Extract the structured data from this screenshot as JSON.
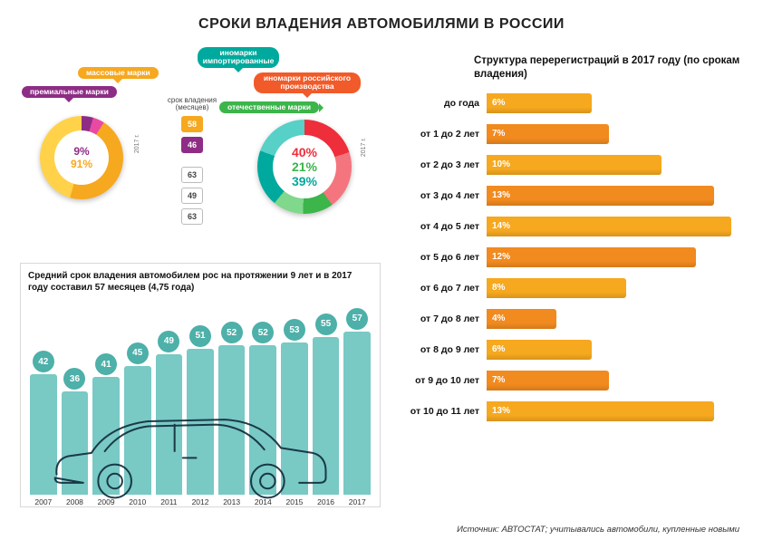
{
  "colors": {
    "purple": "#8e2d85",
    "yellow": "#f6a81f",
    "orange": "#f15a29",
    "red": "#ee2e3a",
    "teal": "#00a99d",
    "green": "#3cb54a",
    "teal_bar": "#79c9c5",
    "teal_circle": "#4db0a9",
    "orange_bar_a": "#f6a81f",
    "orange_bar_b": "#f18a1f",
    "gray_box": "#d8d8d8",
    "text": "#111111"
  },
  "title": "СРОКИ ВЛАДЕНИЯ АВТОМОБИЛЯМИ В РОССИИ",
  "top_left": {
    "pills": {
      "premium": {
        "label": "премиальные марки",
        "color_key": "purple"
      },
      "mass": {
        "label": "массовые марки",
        "color_key": "yellow"
      },
      "imported": {
        "label": "иномарки импортированные",
        "color_key": "teal"
      },
      "ru_made": {
        "label": "иномарки российского производства",
        "color_key": "orange"
      },
      "domestic": {
        "label": "отечественные марки",
        "color_key": "green"
      }
    },
    "donut_left": {
      "values": [
        {
          "pct": 9,
          "colors": [
            "#8e2d85",
            "#e84aa3"
          ]
        },
        {
          "pct": 91,
          "colors": [
            "#f6a81f",
            "#ffd24a"
          ]
        }
      ],
      "center_labels": [
        "9%",
        "91%"
      ],
      "center_colors": [
        "#8e2d85",
        "#f6a81f"
      ],
      "year_label": "2017 г.",
      "size": 92
    },
    "donut_right": {
      "values": [
        {
          "pct": 40,
          "colors": [
            "#ee2e3a",
            "#f4757e"
          ]
        },
        {
          "pct": 21,
          "colors": [
            "#3cb54a",
            "#7fd88b"
          ]
        },
        {
          "pct": 39,
          "colors": [
            "#00a99d",
            "#57d0c7"
          ]
        }
      ],
      "center_labels": [
        "40%",
        "21%",
        "39%"
      ],
      "center_colors": [
        "#ee2e3a",
        "#3cb54a",
        "#00a99d"
      ],
      "year_label": "2017 г.",
      "size": 104
    },
    "col_top": {
      "header": "срок владения (месяцев)",
      "boxes": [
        {
          "val": 58,
          "color_key": "yellow"
        },
        {
          "val": 46,
          "color_key": "purple"
        }
      ]
    },
    "col_bottom": {
      "boxes": [
        {
          "val": 63,
          "outline": true
        },
        {
          "val": 49,
          "outline": true
        },
        {
          "val": 63,
          "outline": true
        }
      ]
    }
  },
  "bottom_left": {
    "title": "Средний срок владения автомобилем рос на протяжении 9 лет и в 2017 году составил 57 месяцев (4,75 года)",
    "bars": {
      "color": "#79c9c5",
      "circle": "#4db0a9",
      "max_value": 60,
      "data": [
        {
          "year": "2007",
          "value": 42
        },
        {
          "year": "2008",
          "value": 36
        },
        {
          "year": "2009",
          "value": 41
        },
        {
          "year": "2010",
          "value": 45
        },
        {
          "year": "2011",
          "value": 49
        },
        {
          "year": "2012",
          "value": 51
        },
        {
          "year": "2013",
          "value": 52
        },
        {
          "year": "2014",
          "value": 52
        },
        {
          "year": "2015",
          "value": 53
        },
        {
          "year": "2016",
          "value": 55
        },
        {
          "year": "2017",
          "value": 57
        }
      ]
    }
  },
  "right": {
    "title": "Структура перерегистраций в 2017 году (по срокам владения)",
    "max_value": 14,
    "alternate_colors": [
      "#f6a81f",
      "#f18a1f"
    ],
    "rows": [
      {
        "label": "до года",
        "value": 6
      },
      {
        "label": "от 1 до 2 лет",
        "value": 7
      },
      {
        "label": "от 2 до 3 лет",
        "value": 10
      },
      {
        "label": "от 3 до 4 лет",
        "value": 13
      },
      {
        "label": "от 4 до 5 лет",
        "value": 14
      },
      {
        "label": "от 5 до 6 лет",
        "value": 12
      },
      {
        "label": "от 6 до 7 лет",
        "value": 8
      },
      {
        "label": "от 7 до 8 лет",
        "value": 4
      },
      {
        "label": "от 8 до 9 лет",
        "value": 6
      },
      {
        "label": "от 9 до 10 лет",
        "value": 7
      },
      {
        "label": "от 10 до 11 лет",
        "value": 13
      }
    ]
  },
  "source": "Источник: АВТОСТАТ; учитывались автомобили, купленные новыми"
}
